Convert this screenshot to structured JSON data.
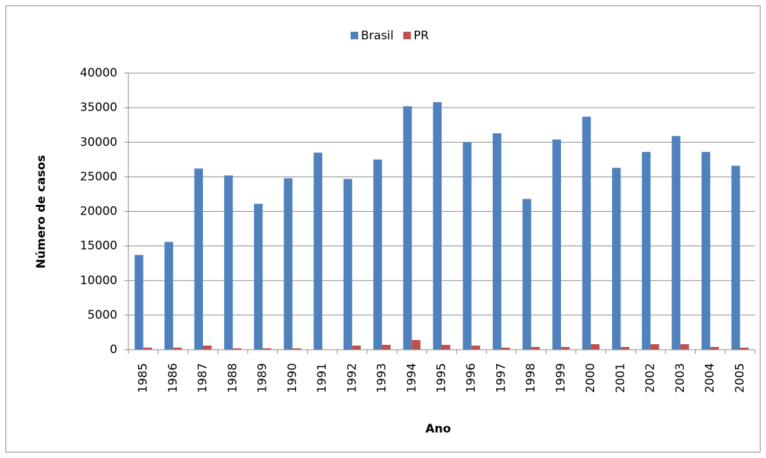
{
  "chart_data": {
    "type": "bar",
    "x_label": "Ano",
    "y_label": "Número de casos",
    "categories": [
      "1985",
      "1986",
      "1987",
      "1988",
      "1989",
      "1990",
      "1991",
      "1992",
      "1993",
      "1994",
      "1995",
      "1996",
      "1997",
      "1998",
      "1999",
      "2000",
      "2001",
      "2002",
      "2003",
      "2004",
      "2005"
    ],
    "series": [
      {
        "name": "Brasil",
        "color": "#4f81bd",
        "values": [
          13700,
          15600,
          26200,
          25200,
          21100,
          24800,
          28500,
          24700,
          27500,
          35200,
          35800,
          30000,
          31300,
          21800,
          30400,
          33700,
          26300,
          28600,
          30900,
          28600,
          26600
        ]
      },
      {
        "name": "PR",
        "color": "#c0504d",
        "values": [
          300,
          300,
          600,
          200,
          200,
          200,
          0,
          600,
          700,
          1400,
          700,
          600,
          300,
          400,
          400,
          800,
          400,
          800,
          800,
          400,
          300
        ]
      }
    ],
    "ylim": [
      0,
      40000
    ],
    "yticks": [
      0,
      5000,
      10000,
      15000,
      20000,
      25000,
      30000,
      35000,
      40000
    ],
    "grid": true,
    "legend": "top"
  }
}
